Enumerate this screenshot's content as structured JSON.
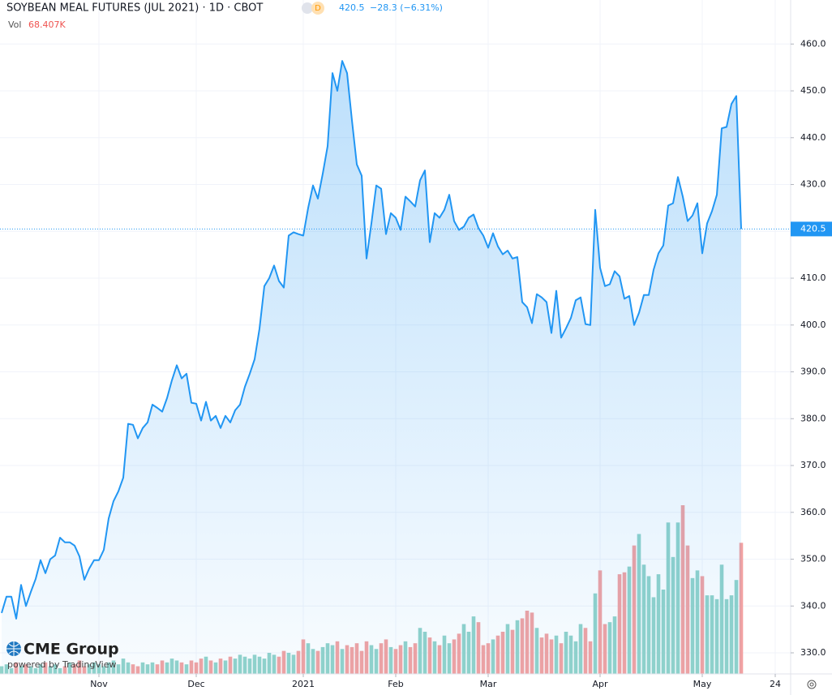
{
  "chart_data": {
    "type": "line",
    "title": "SOYBEAN MEAL FUTURES (JUL 2021) · 1D · CBOT",
    "badge": "D",
    "last_price": {
      "value": 420.5,
      "label": "420.5"
    },
    "change_label": "−28.3 (−6.31%)",
    "volume_title": "Vol",
    "volume_value_label": "68.407K",
    "logo": "CME Group",
    "powered_by": "powered by TradingView",
    "color": "#2196f3",
    "up_color": "#92d3ca",
    "down_color": "#f2a2a2",
    "grid": true,
    "ylim": [
      325.5,
      469.4
    ],
    "yticks": [
      {
        "value": 330,
        "label": "330.0"
      },
      {
        "value": 340,
        "label": "340.0"
      },
      {
        "value": 350,
        "label": "350.0"
      },
      {
        "value": 360,
        "label": "360.0"
      },
      {
        "value": 370,
        "label": "370.0"
      },
      {
        "value": 380,
        "label": "380.0"
      },
      {
        "value": 390,
        "label": "390.0"
      },
      {
        "value": 400,
        "label": "400.0"
      },
      {
        "value": 410,
        "label": "410.0"
      },
      {
        "value": 420,
        "label": "420.0"
      },
      {
        "value": 430,
        "label": "430.0"
      },
      {
        "value": 440,
        "label": "440.0"
      },
      {
        "value": 450,
        "label": "450.0"
      },
      {
        "value": 460,
        "label": "460.0"
      }
    ],
    "xticks": [
      {
        "value": 20,
        "label": "Nov"
      },
      {
        "value": 40,
        "label": "Dec"
      },
      {
        "value": 62,
        "label": "2021"
      },
      {
        "value": 81,
        "label": "Feb"
      },
      {
        "value": 100,
        "label": "Mar"
      },
      {
        "value": 123,
        "label": "Apr"
      },
      {
        "value": 144,
        "label": "May"
      },
      {
        "value": 159,
        "label": "24"
      }
    ],
    "values": [
      338.5,
      342,
      342,
      337.3,
      344.5,
      340,
      343,
      345.8,
      349.8,
      347,
      350,
      350.8,
      354.6,
      353.6,
      353.6,
      352.9,
      350.6,
      345.6,
      348,
      349.8,
      349.8,
      352,
      358.7,
      362.4,
      364.5,
      367.4,
      378.9,
      378.7,
      375.8,
      378,
      379.2,
      383,
      382.3,
      381.5,
      384.4,
      388.2,
      391.4,
      388.6,
      389.6,
      383.4,
      383.2,
      379.6,
      383.6,
      379.6,
      380.6,
      378,
      380.6,
      379.2,
      381.8,
      383,
      386.8,
      389.6,
      392.7,
      399.2,
      408.3,
      410,
      412.7,
      409.4,
      408,
      419.1,
      419.8,
      419.4,
      419.1,
      425,
      429.8,
      427,
      432.3,
      438.2,
      453.8,
      450,
      456.4,
      453.8,
      443.7,
      434.3,
      431.9,
      414.2,
      421.7,
      429.8,
      429.1,
      419.4,
      423.9,
      422.9,
      420.3,
      427.4,
      426.4,
      425.3,
      430.9,
      433,
      417.7,
      423.9,
      422.9,
      424.6,
      427.8,
      422.2,
      420.3,
      421,
      422.9,
      423.6,
      420.7,
      419.1,
      416.5,
      419.6,
      416.8,
      415.1,
      415.9,
      414.2,
      414.5,
      404.9,
      403.8,
      400.4,
      406.6,
      405.9,
      404.9,
      398.3,
      407.3,
      397.3,
      399.3,
      401.5,
      405.3,
      405.9,
      400.2,
      400,
      424.6,
      412.2,
      408.3,
      408.7,
      411.5,
      410.4,
      405.6,
      406.2,
      400,
      402.6,
      406.4,
      406.4,
      411.8,
      415.3,
      417,
      425.5,
      426,
      431.6,
      427.4,
      422.2,
      423.4,
      426,
      415.3,
      421.7,
      424.3,
      427.8,
      442,
      442.3,
      447.2,
      448.9,
      420.5
    ],
    "volumes": [
      4000,
      5000,
      3000,
      6000,
      4000,
      5000,
      4000,
      3000,
      5000,
      6000,
      4000,
      5000,
      3000,
      4000,
      6000,
      5000,
      7000,
      4000,
      5000,
      6000,
      5000,
      4000,
      6000,
      7000,
      5000,
      8000,
      6000,
      5000,
      4000,
      6000,
      5000,
      6000,
      5000,
      7000,
      6000,
      8000,
      7000,
      6000,
      5000,
      7000,
      6000,
      8000,
      9000,
      7000,
      6000,
      8000,
      7000,
      9000,
      8000,
      10000,
      9000,
      8000,
      10000,
      9000,
      8000,
      11000,
      10000,
      9000,
      12000,
      11000,
      10000,
      12000,
      18000,
      16000,
      13000,
      12000,
      14000,
      16000,
      15000,
      17000,
      13000,
      15000,
      14000,
      16000,
      12000,
      17000,
      15000,
      13000,
      16000,
      18000,
      14000,
      13000,
      15000,
      17000,
      14000,
      16000,
      24000,
      22000,
      19000,
      17000,
      15000,
      20000,
      16000,
      18000,
      21000,
      26000,
      22000,
      30000,
      27000,
      15000,
      16000,
      18000,
      20000,
      22000,
      26000,
      23000,
      28000,
      29000,
      33000,
      32000,
      24000,
      19000,
      21000,
      18000,
      20000,
      16000,
      22000,
      20000,
      17000,
      26000,
      24000,
      17000,
      42000,
      54000,
      26000,
      27000,
      30000,
      52000,
      53000,
      56000,
      67000,
      73000,
      57000,
      51000,
      40000,
      52000,
      44000,
      79000,
      61000,
      79000,
      88000,
      67000,
      50000,
      54000,
      51000,
      41000,
      41000,
      39000,
      57000,
      39000,
      41000,
      49000,
      68407
    ]
  }
}
